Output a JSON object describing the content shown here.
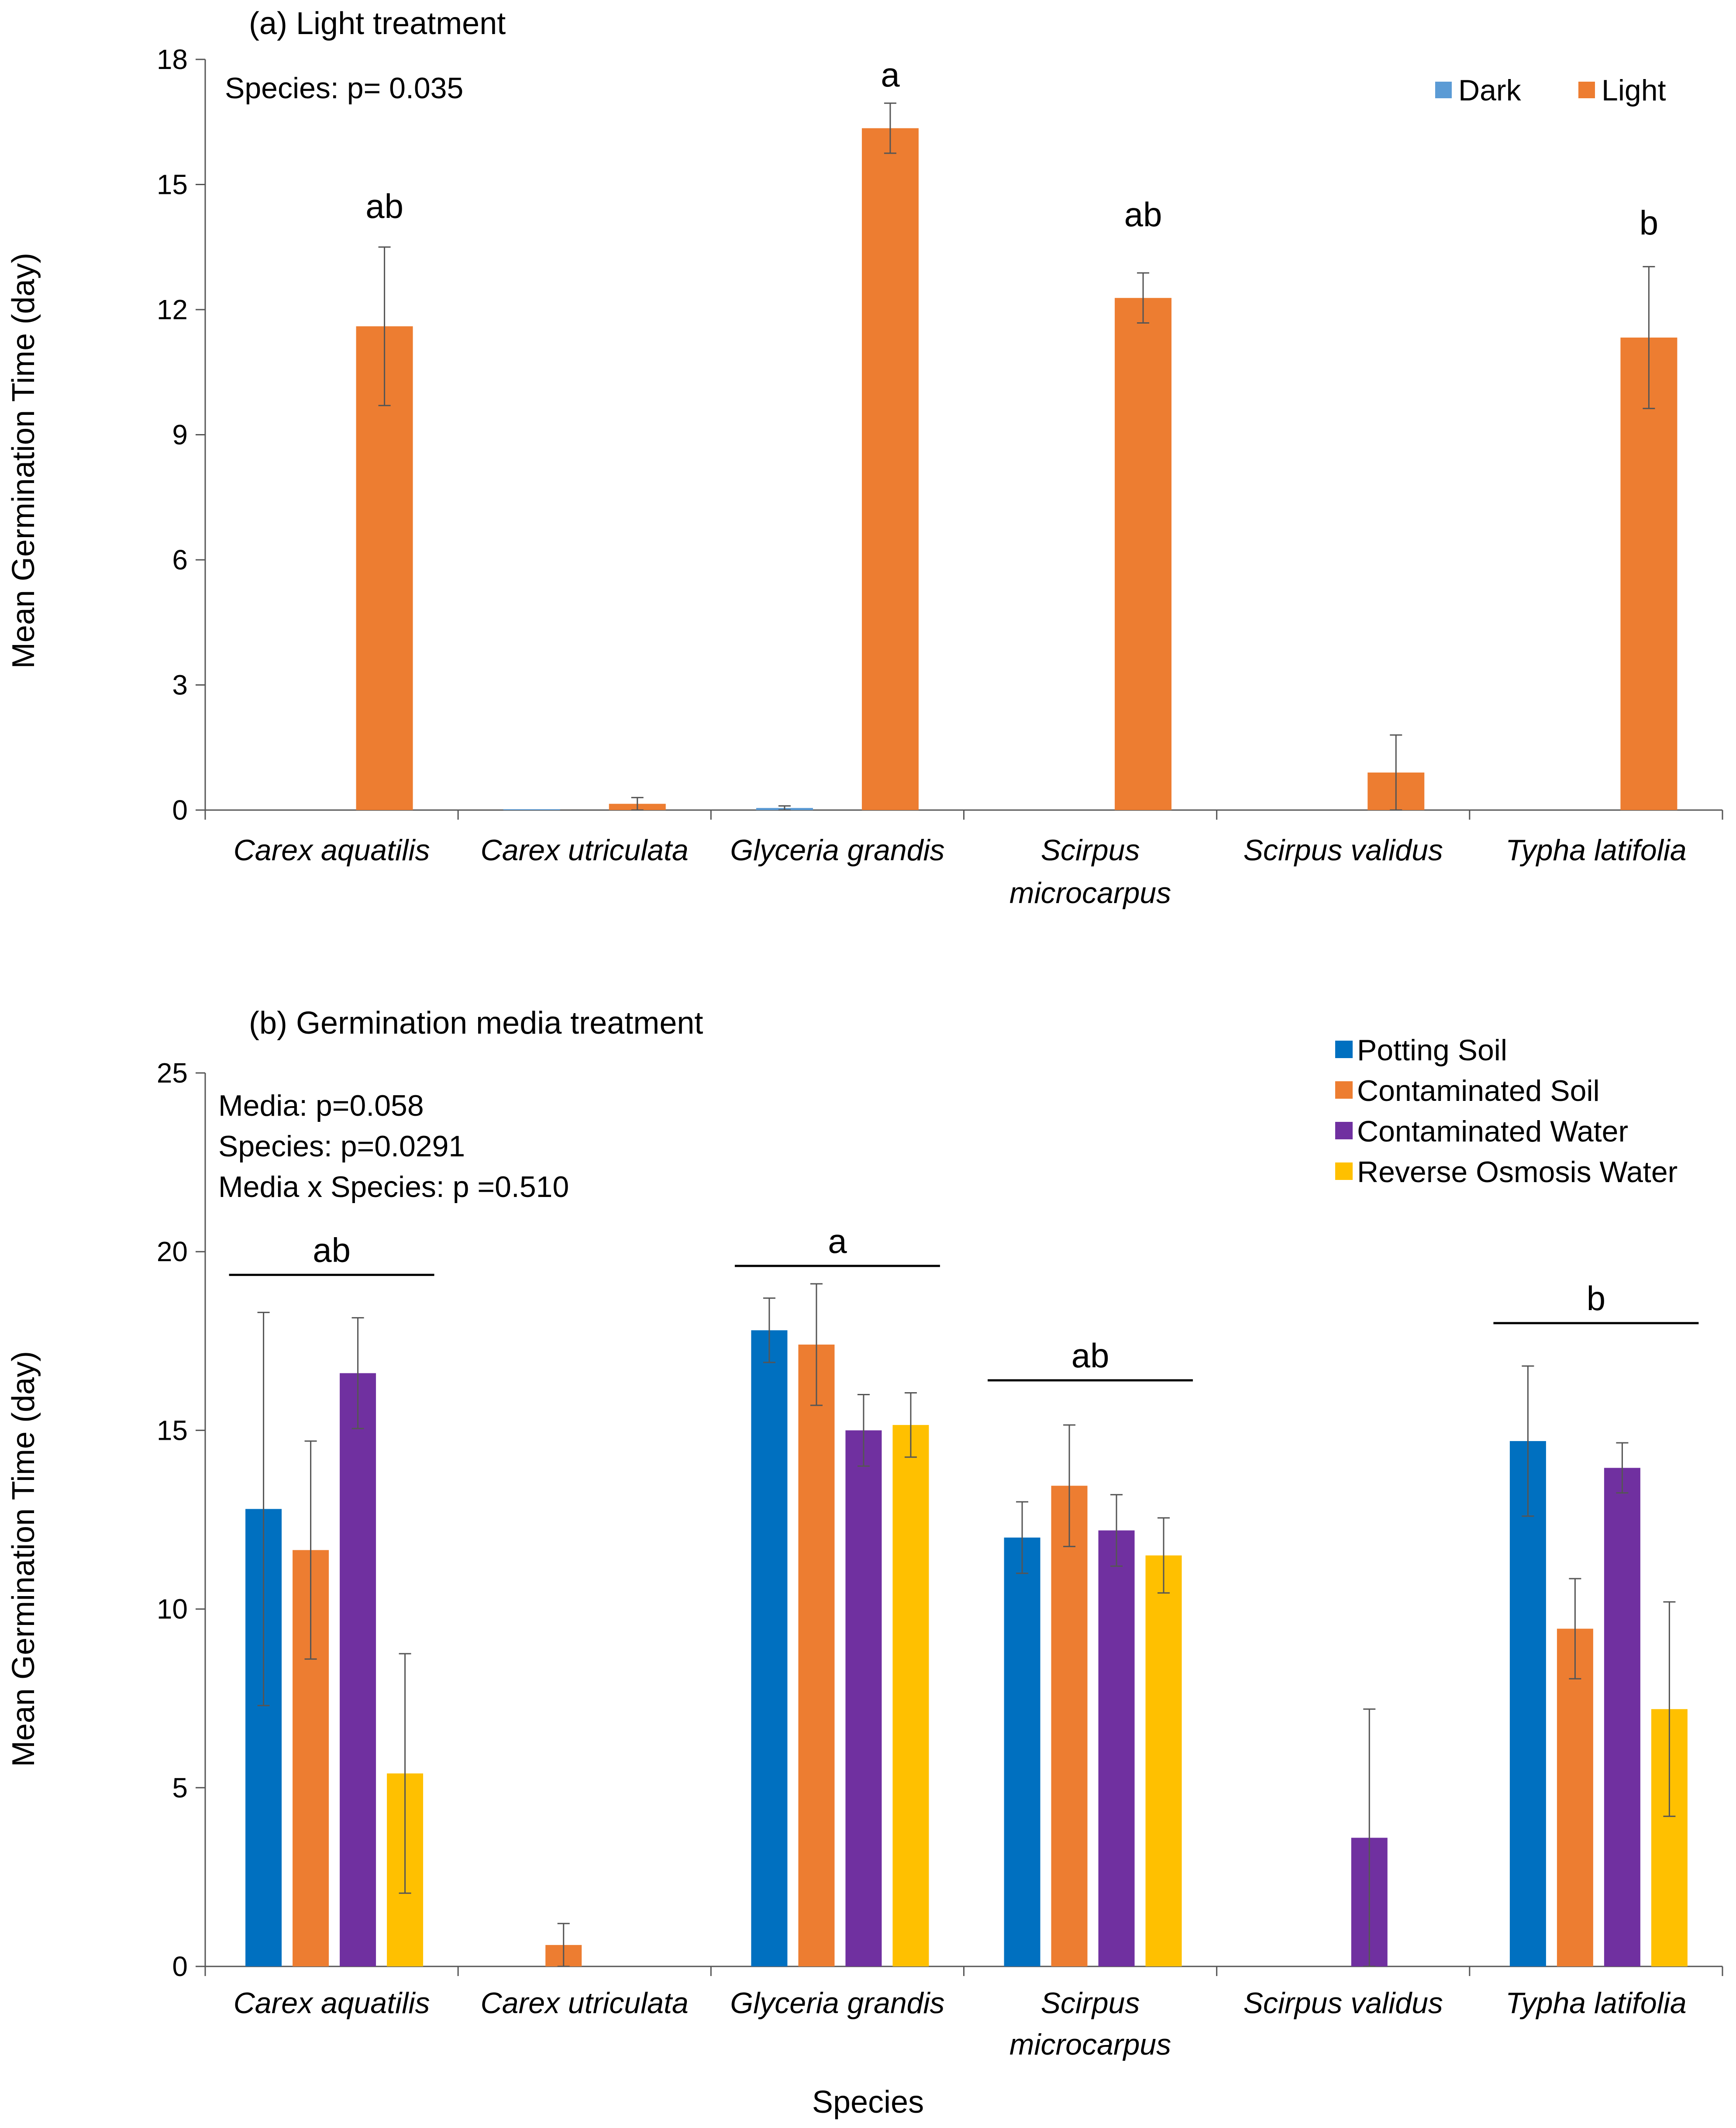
{
  "chart_data": [
    {
      "type": "bar",
      "title": "(a) Light treatment",
      "xlabel": "",
      "ylabel": "Mean Germination Time (day)",
      "ylim": [
        0,
        18
      ],
      "yticks": [
        0,
        3,
        6,
        9,
        12,
        15,
        18
      ],
      "annotations": [
        "Species: p= 0.035"
      ],
      "categories": [
        [
          "Carex aquatilis"
        ],
        [
          "Carex utriculata"
        ],
        [
          "Glyceria grandis"
        ],
        [
          "Scirpus",
          "microcarpus"
        ],
        [
          "Scirpus validus"
        ],
        [
          "Typha latifolia"
        ]
      ],
      "series": [
        {
          "name": "Dark",
          "color": "#5B9BD5",
          "values": [
            0,
            0.02,
            0.05,
            0,
            0,
            0
          ],
          "errors": [
            0,
            0,
            0.05,
            0,
            0,
            0
          ]
        },
        {
          "name": "Light",
          "color": "#ED7D31",
          "values": [
            11.6,
            0.15,
            16.35,
            12.28,
            0.9,
            11.33
          ],
          "errors": [
            1.9,
            0.15,
            0.6,
            0.6,
            0.9,
            1.7
          ]
        }
      ],
      "significance": [
        {
          "category": 0,
          "label": "ab",
          "y": 14.2
        },
        {
          "category": 2,
          "label": "a",
          "y": 17.35
        },
        {
          "category": 3,
          "label": "ab",
          "y": 14.0
        },
        {
          "category": 5,
          "label": "b",
          "y": 13.8
        }
      ],
      "legend": "top-right"
    },
    {
      "type": "bar",
      "title": "(b) Germination media treatment",
      "xlabel": "Species",
      "ylabel": "Mean Germination Time (day)",
      "ylim": [
        0,
        25
      ],
      "yticks": [
        0,
        5,
        10,
        15,
        20,
        25
      ],
      "annotations": [
        "Media: p=0.058",
        "Species: p=0.0291",
        "Media x Species: p =0.510"
      ],
      "categories": [
        [
          "Carex aquatilis"
        ],
        [
          "Carex utriculata"
        ],
        [
          "Glyceria grandis"
        ],
        [
          "Scirpus",
          "microcarpus"
        ],
        [
          "Scirpus validus"
        ],
        [
          "Typha latifolia"
        ]
      ],
      "series": [
        {
          "name": "Potting Soil",
          "color": "#0070C0",
          "values": [
            12.8,
            0,
            17.8,
            12.0,
            0,
            14.7
          ],
          "errors": [
            5.5,
            0,
            0.9,
            1.0,
            0,
            2.1
          ]
        },
        {
          "name": "Contaminated Soil",
          "color": "#ED7D31",
          "values": [
            11.65,
            0.6,
            17.4,
            13.45,
            0,
            9.45
          ],
          "errors": [
            3.05,
            0.6,
            1.7,
            1.7,
            0,
            1.4
          ]
        },
        {
          "name": "Contaminated Water",
          "color": "#7030A0",
          "values": [
            16.6,
            0,
            15.0,
            12.2,
            3.6,
            13.95
          ],
          "errors": [
            1.55,
            0,
            1.0,
            1.0,
            3.6,
            0.7
          ]
        },
        {
          "name": "Reverse Osmosis Water",
          "color": "#FFC000",
          "values": [
            5.4,
            0,
            15.15,
            11.5,
            0,
            7.2
          ],
          "errors": [
            3.35,
            0,
            0.9,
            1.05,
            0,
            3.0
          ]
        }
      ],
      "significance": [
        {
          "category": 0,
          "label": "ab",
          "y": 19.35
        },
        {
          "category": 2,
          "label": "a",
          "y": 19.6
        },
        {
          "category": 3,
          "label": "ab",
          "y": 16.4
        },
        {
          "category": 5,
          "label": "b",
          "y": 18.0
        }
      ],
      "legend": "top-right"
    }
  ]
}
